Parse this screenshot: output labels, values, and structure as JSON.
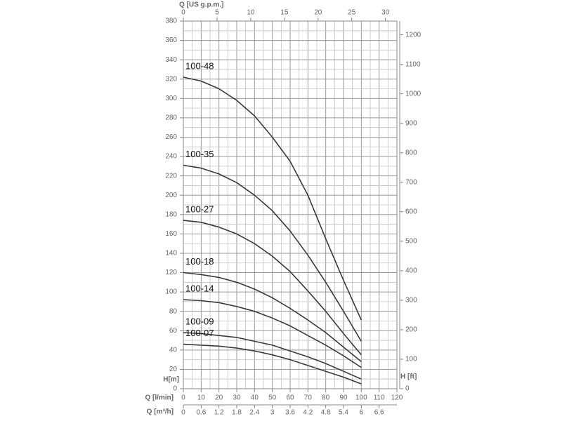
{
  "chart_data": {
    "type": "line",
    "x": [
      0,
      10,
      20,
      30,
      40,
      50,
      60,
      70,
      80,
      90,
      100
    ],
    "series": [
      {
        "name": "100-48",
        "color": "#3a3a3a",
        "values": [
          322,
          318,
          310,
          298,
          282,
          260,
          235,
          200,
          155,
          112,
          71
        ]
      },
      {
        "name": "100-35",
        "color": "#3a3a3a",
        "values": [
          231,
          228,
          222,
          213,
          200,
          184,
          163,
          138,
          110,
          80,
          49
        ]
      },
      {
        "name": "100-27",
        "color": "#3a3a3a",
        "values": [
          174,
          172,
          167,
          160,
          150,
          137,
          121,
          101,
          80,
          57,
          35
        ]
      },
      {
        "name": "100-18",
        "color": "#3a3a3a",
        "values": [
          120,
          118,
          115,
          110,
          103,
          94,
          83,
          71,
          58,
          43,
          28
        ]
      },
      {
        "name": "100-14",
        "color": "#3a3a3a",
        "values": [
          92,
          91,
          89,
          85,
          80,
          73,
          65,
          55,
          45,
          34,
          22
        ]
      },
      {
        "name": "100-09",
        "color": "#3a3a3a",
        "values": [
          58,
          57,
          55,
          53,
          49,
          45,
          39,
          33,
          26,
          18,
          10
        ]
      },
      {
        "name": "100-07",
        "color": "#3a3a3a",
        "values": [
          46,
          45,
          44,
          42,
          39,
          35,
          30,
          24,
          18,
          12,
          5
        ]
      }
    ],
    "xlabel": "Q [l/min]",
    "xlim": [
      0,
      120
    ],
    "xticks": [
      0,
      10,
      20,
      30,
      40,
      50,
      60,
      70,
      80,
      90,
      100,
      110,
      120
    ],
    "x2label": "Q [US g.p.m.]",
    "x2lim": [
      0,
      31.7
    ],
    "x2ticks": [
      0,
      5,
      10,
      15,
      20,
      25,
      30
    ],
    "x3label": "Q [m³/h]",
    "x3lim": [
      0,
      7.2
    ],
    "x3ticks": [
      0,
      0.6,
      1.2,
      1.8,
      2.4,
      3,
      3.6,
      4.2,
      4.8,
      5.4,
      6,
      6.6
    ],
    "ylabel": "H[m]",
    "ylim": [
      0,
      380
    ],
    "yticks": [
      0,
      20,
      40,
      60,
      80,
      100,
      120,
      140,
      160,
      180,
      200,
      220,
      240,
      260,
      280,
      300,
      320,
      340,
      360,
      380
    ],
    "y2label": "H [ft]",
    "y2lim": [
      0,
      1246.7
    ],
    "y2ticks": [
      0,
      100,
      200,
      300,
      400,
      500,
      600,
      700,
      800,
      900,
      1000,
      1100,
      1200
    ],
    "grid": true
  }
}
